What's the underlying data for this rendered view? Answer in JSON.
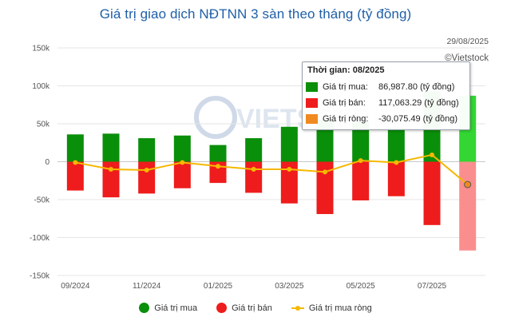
{
  "title": "Giá trị giao dịch NĐTNN 3 sàn theo tháng (tỷ đồng)",
  "date_stamp": "29/08/2025",
  "credit": "©Vietstock",
  "watermark": "VIETSTOCK",
  "colors": {
    "buy": "#0a8f0a",
    "buy_highlight": "#33d633",
    "sell": "#ee1c1c",
    "sell_highlight": "#fa8e8e",
    "net": "#f5b800",
    "net_highlight": "#f08a20"
  },
  "tooltip": {
    "time_label": "Thời gian:",
    "time_value": "08/2025",
    "buy_label": "Giá trị mua:",
    "buy_value": "86,987.80 (tỷ đồng)",
    "sell_label": "Giá trị bán:",
    "sell_value": "117,063.29 (tỷ đồng)",
    "net_label": "Giá trị ròng:",
    "net_value": "-30,075.49 (tỷ đồng)"
  },
  "legend": {
    "buy": "Giá trị mua",
    "sell": "Giá trị bán",
    "net": "Giá trị mua ròng"
  },
  "chart_data": {
    "type": "bar",
    "categories": [
      "09/2024",
      "10/2024",
      "11/2024",
      "12/2024",
      "01/2025",
      "02/2025",
      "03/2025",
      "04/2025",
      "05/2025",
      "06/2025",
      "07/2025",
      "08/2025"
    ],
    "x_tick_labels": [
      "09/2024",
      "11/2024",
      "01/2025",
      "03/2025",
      "05/2025",
      "07/2025"
    ],
    "series": [
      {
        "name": "Giá trị mua",
        "type": "bar",
        "values": [
          36000,
          37000,
          31000,
          34500,
          22000,
          31000,
          46000,
          56000,
          52000,
          45000,
          93000,
          86987.8
        ]
      },
      {
        "name": "Giá trị bán",
        "type": "bar",
        "values": [
          -38000,
          -47000,
          -42000,
          -35000,
          -28000,
          -41000,
          -55000,
          -69000,
          -51000,
          -45500,
          -83500,
          -117063.29
        ]
      },
      {
        "name": "Giá trị mua ròng",
        "type": "line",
        "values": [
          -1000,
          -10000,
          -11000,
          -1000,
          -6000,
          -10000,
          -10000,
          -13500,
          1500,
          -1000,
          9000,
          -30075.49
        ]
      }
    ],
    "ylim": [
      -150000,
      150000
    ],
    "yticks": [
      -150000,
      -100000,
      -50000,
      0,
      50000,
      100000,
      150000
    ],
    "ytick_labels": [
      "-150k",
      "-100k",
      "-50k",
      "0",
      "50k",
      "100k",
      "150k"
    ],
    "highlighted_category": "08/2025",
    "grid": true,
    "legend_position": "bottom"
  }
}
